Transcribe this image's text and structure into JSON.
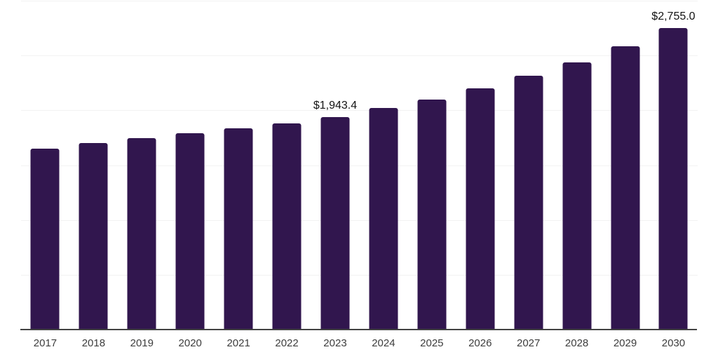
{
  "chart_data": {
    "type": "bar",
    "title": "",
    "xlabel": "",
    "ylabel": "",
    "categories": [
      "2017",
      "2018",
      "2019",
      "2020",
      "2021",
      "2022",
      "2023",
      "2024",
      "2025",
      "2026",
      "2027",
      "2028",
      "2029",
      "2030"
    ],
    "values": [
      1660,
      1710,
      1755,
      1795,
      1840,
      1890,
      1943.4,
      2025,
      2105,
      2205,
      2320,
      2445,
      2590,
      2755
    ],
    "data_labels": [
      null,
      null,
      null,
      null,
      null,
      null,
      "$1,943.4",
      null,
      null,
      null,
      null,
      null,
      null,
      "$2,755.0"
    ],
    "ylim": [
      0,
      3000
    ],
    "gridline_step": 500,
    "grid": true,
    "legend": "none",
    "colors": {
      "bar": "#31164e",
      "gridline": "#f2f2f2",
      "axis_line": "#424242",
      "tick_label": "#3d3d3d",
      "data_label": "#141414",
      "background": "#ffffff"
    }
  }
}
